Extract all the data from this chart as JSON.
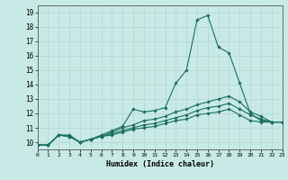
{
  "xlabel": "Humidex (Indice chaleur)",
  "ylabel": "",
  "background_color": "#c8eae6",
  "grid_color": "#b8d8d4",
  "line_color": "#1a6e62",
  "xlim": [
    0,
    23
  ],
  "ylim": [
    9.5,
    19.5
  ],
  "xticks": [
    0,
    1,
    2,
    3,
    4,
    5,
    6,
    7,
    8,
    9,
    10,
    11,
    12,
    13,
    14,
    15,
    16,
    17,
    18,
    19,
    20,
    21,
    22,
    23
  ],
  "yticks": [
    10,
    11,
    12,
    13,
    14,
    15,
    16,
    17,
    18,
    19
  ],
  "series": [
    {
      "x": [
        0,
        1,
        2,
        3,
        4,
        5,
        6,
        7,
        8,
        9,
        10,
        11,
        12,
        13,
        14,
        15,
        16,
        17,
        18,
        19,
        20,
        21,
        22,
        23
      ],
      "y": [
        9.8,
        9.8,
        10.5,
        10.5,
        10.0,
        10.2,
        10.5,
        10.8,
        11.1,
        12.3,
        12.1,
        12.2,
        12.4,
        14.1,
        15.0,
        18.5,
        18.8,
        16.6,
        16.2,
        14.1,
        12.0,
        11.5,
        11.4,
        11.4
      ]
    },
    {
      "x": [
        0,
        1,
        2,
        3,
        4,
        5,
        6,
        7,
        8,
        9,
        10,
        11,
        12,
        13,
        14,
        15,
        16,
        17,
        18,
        19,
        20,
        21,
        22,
        23
      ],
      "y": [
        9.8,
        9.8,
        10.5,
        10.4,
        10.0,
        10.2,
        10.4,
        10.7,
        11.0,
        11.2,
        11.5,
        11.6,
        11.8,
        12.1,
        12.3,
        12.6,
        12.8,
        13.0,
        13.2,
        12.8,
        12.1,
        11.8,
        11.4,
        11.4
      ]
    },
    {
      "x": [
        0,
        1,
        2,
        3,
        4,
        5,
        6,
        7,
        8,
        9,
        10,
        11,
        12,
        13,
        14,
        15,
        16,
        17,
        18,
        19,
        20,
        21,
        22,
        23
      ],
      "y": [
        9.8,
        9.8,
        10.5,
        10.4,
        10.0,
        10.2,
        10.4,
        10.6,
        10.8,
        11.0,
        11.2,
        11.3,
        11.5,
        11.7,
        11.9,
        12.2,
        12.4,
        12.5,
        12.7,
        12.3,
        11.9,
        11.6,
        11.4,
        11.4
      ]
    },
    {
      "x": [
        0,
        1,
        2,
        3,
        4,
        5,
        6,
        7,
        8,
        9,
        10,
        11,
        12,
        13,
        14,
        15,
        16,
        17,
        18,
        19,
        20,
        21,
        22,
        23
      ],
      "y": [
        9.8,
        9.8,
        10.5,
        10.4,
        10.0,
        10.2,
        10.4,
        10.5,
        10.7,
        10.9,
        11.0,
        11.1,
        11.3,
        11.5,
        11.6,
        11.9,
        12.0,
        12.1,
        12.3,
        11.9,
        11.5,
        11.4,
        11.4,
        11.4
      ]
    }
  ]
}
